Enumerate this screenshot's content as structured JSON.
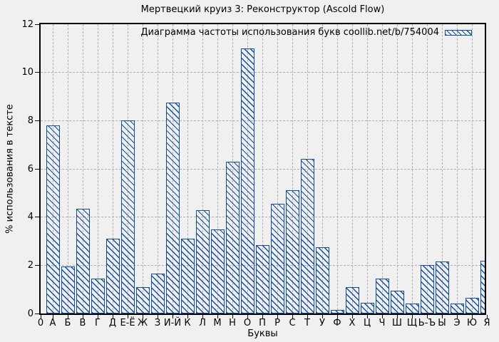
{
  "figure": {
    "background": "#f0f0f0"
  },
  "chart_data": {
    "type": "bar",
    "title": "Мертвецкий круиз 3: Реконструктор (Ascold Flow)",
    "legend": "Диаграмма частоты использования букв coollib.net/b/754004",
    "legend_position": "top-right",
    "xlabel": "Буквы",
    "ylabel": "% использования в тексте",
    "origin_tick_label": "0",
    "ylim": [
      0,
      12
    ],
    "yticks": [
      0,
      2,
      4,
      6,
      8,
      10,
      12
    ],
    "grid": true,
    "categories": [
      "А",
      "Б",
      "В",
      "Г",
      "Д",
      "Е-Ё",
      "Ж",
      "З",
      "И-Й",
      "К",
      "Л",
      "М",
      "Н",
      "О",
      "П",
      "Р",
      "С",
      "Т",
      "У",
      "Ф",
      "Х",
      "Ц",
      "Ч",
      "Ш",
      "Щ",
      "Ь-Ъ",
      "Ы",
      "Э",
      "Ю",
      "Я"
    ],
    "values": [
      7.8,
      1.95,
      4.35,
      1.45,
      3.1,
      8.0,
      1.1,
      1.65,
      8.75,
      3.1,
      4.3,
      3.5,
      6.3,
      11.0,
      2.85,
      4.55,
      5.1,
      6.4,
      2.75,
      0.15,
      1.1,
      0.45,
      1.45,
      0.95,
      0.4,
      2.0,
      2.15,
      0.4,
      0.65,
      2.2
    ],
    "colors": {
      "bar": "#144d9e",
      "grid": "#b0b0b0",
      "background": "#f0f0f0",
      "axis": "#000000",
      "text": "#000000"
    }
  }
}
